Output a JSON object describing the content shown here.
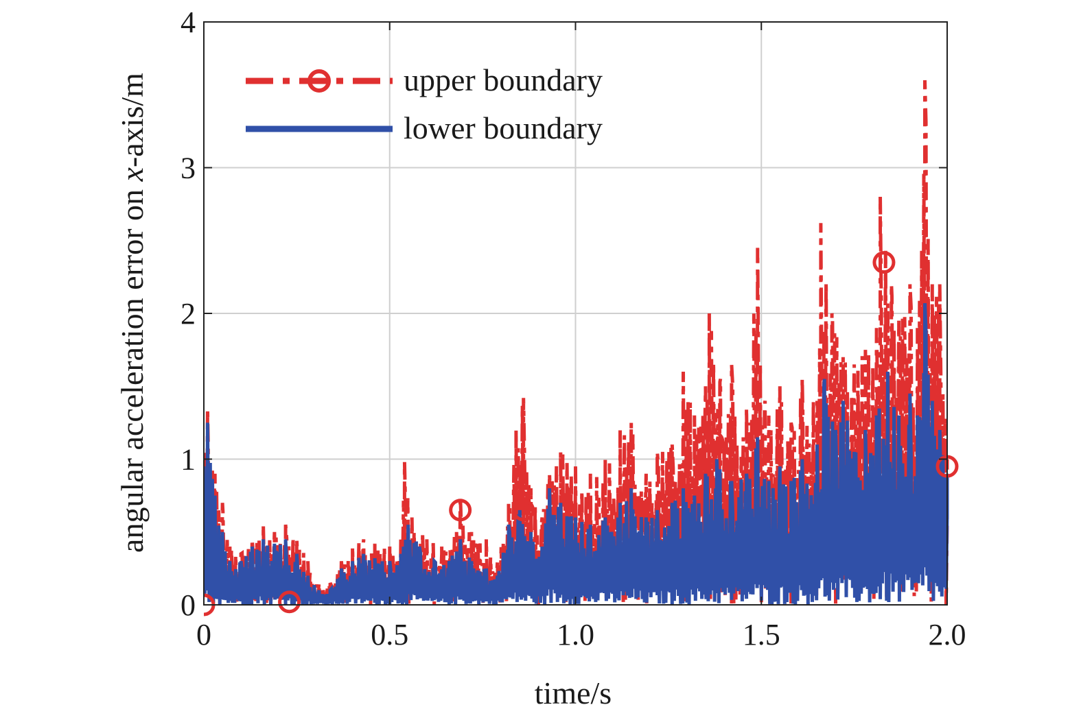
{
  "chart_data": {
    "type": "line",
    "xlabel": "time/s",
    "ylabel_parts": [
      "angular acceleration error on ",
      "x",
      "-axis/m"
    ],
    "xlim": [
      0,
      2.0
    ],
    "ylim": [
      0,
      4
    ],
    "x_ticks": [
      0,
      0.5,
      1.0,
      1.5,
      2.0
    ],
    "x_tick_labels": [
      "0",
      "0.5",
      "1.0",
      "1.5",
      "2.0"
    ],
    "y_ticks": [
      0,
      1,
      2,
      3,
      4
    ],
    "y_tick_labels": [
      "0",
      "1",
      "2",
      "3",
      "4"
    ],
    "grid": true,
    "legend_position": "top-left",
    "series": [
      {
        "name": "upper boundary",
        "color": "#e03030",
        "line_style": "dash-dot",
        "marker": "circle",
        "markers_at": [
          0,
          0.23,
          0.69,
          0.86,
          1.37,
          1.83,
          2.0
        ],
        "envelope": [
          [
            0,
            1.05
          ],
          [
            0.01,
            1.35
          ],
          [
            0.03,
            0.9
          ],
          [
            0.05,
            0.7
          ],
          [
            0.07,
            0.4
          ],
          [
            0.1,
            0.35
          ],
          [
            0.13,
            0.45
          ],
          [
            0.16,
            0.55
          ],
          [
            0.19,
            0.5
          ],
          [
            0.22,
            0.55
          ],
          [
            0.25,
            0.45
          ],
          [
            0.28,
            0.3
          ],
          [
            0.31,
            0.15
          ],
          [
            0.34,
            0.15
          ],
          [
            0.37,
            0.3
          ],
          [
            0.4,
            0.4
          ],
          [
            0.43,
            0.45
          ],
          [
            0.46,
            0.42
          ],
          [
            0.5,
            0.4
          ],
          [
            0.53,
            0.45
          ],
          [
            0.54,
            0.98
          ],
          [
            0.56,
            0.6
          ],
          [
            0.6,
            0.45
          ],
          [
            0.64,
            0.4
          ],
          [
            0.68,
            0.5
          ],
          [
            0.69,
            0.75
          ],
          [
            0.72,
            0.5
          ],
          [
            0.76,
            0.45
          ],
          [
            0.79,
            0.3
          ],
          [
            0.82,
            0.7
          ],
          [
            0.84,
            1.2
          ],
          [
            0.86,
            1.42
          ],
          [
            0.88,
            0.8
          ],
          [
            0.91,
            0.6
          ],
          [
            0.93,
            0.9
          ],
          [
            0.96,
            1.05
          ],
          [
            1.0,
            0.95
          ],
          [
            1.04,
            0.9
          ],
          [
            1.08,
            1.0
          ],
          [
            1.12,
            1.2
          ],
          [
            1.15,
            1.25
          ],
          [
            1.19,
            0.9
          ],
          [
            1.22,
            1.05
          ],
          [
            1.26,
            1.1
          ],
          [
            1.29,
            1.6
          ],
          [
            1.32,
            1.3
          ],
          [
            1.35,
            1.5
          ],
          [
            1.36,
            2.0
          ],
          [
            1.39,
            1.55
          ],
          [
            1.42,
            1.65
          ],
          [
            1.46,
            1.35
          ],
          [
            1.49,
            2.45
          ],
          [
            1.51,
            1.4
          ],
          [
            1.55,
            1.5
          ],
          [
            1.58,
            1.25
          ],
          [
            1.61,
            1.55
          ],
          [
            1.65,
            1.4
          ],
          [
            1.66,
            2.62
          ],
          [
            1.69,
            2.0
          ],
          [
            1.72,
            1.7
          ],
          [
            1.75,
            1.65
          ],
          [
            1.78,
            1.75
          ],
          [
            1.81,
            1.9
          ],
          [
            1.82,
            2.8
          ],
          [
            1.85,
            2.2
          ],
          [
            1.87,
            1.95
          ],
          [
            1.9,
            2.2
          ],
          [
            1.92,
            1.9
          ],
          [
            1.94,
            3.6
          ],
          [
            1.96,
            2.2
          ],
          [
            1.98,
            2.2
          ],
          [
            2.0,
            1.0
          ]
        ]
      },
      {
        "name": "lower boundary",
        "color": "#3050a8",
        "line_style": "solid",
        "envelope": [
          [
            0,
            0.95
          ],
          [
            0.01,
            1.25
          ],
          [
            0.03,
            0.75
          ],
          [
            0.05,
            0.5
          ],
          [
            0.07,
            0.3
          ],
          [
            0.1,
            0.3
          ],
          [
            0.13,
            0.4
          ],
          [
            0.16,
            0.45
          ],
          [
            0.19,
            0.42
          ],
          [
            0.22,
            0.45
          ],
          [
            0.25,
            0.35
          ],
          [
            0.28,
            0.2
          ],
          [
            0.31,
            0.1
          ],
          [
            0.34,
            0.1
          ],
          [
            0.37,
            0.25
          ],
          [
            0.4,
            0.3
          ],
          [
            0.43,
            0.35
          ],
          [
            0.46,
            0.32
          ],
          [
            0.5,
            0.3
          ],
          [
            0.53,
            0.35
          ],
          [
            0.55,
            0.55
          ],
          [
            0.58,
            0.4
          ],
          [
            0.62,
            0.3
          ],
          [
            0.66,
            0.3
          ],
          [
            0.69,
            0.45
          ],
          [
            0.72,
            0.3
          ],
          [
            0.76,
            0.25
          ],
          [
            0.79,
            0.2
          ],
          [
            0.82,
            0.55
          ],
          [
            0.85,
            0.65
          ],
          [
            0.88,
            0.5
          ],
          [
            0.91,
            0.4
          ],
          [
            0.93,
            0.8
          ],
          [
            0.96,
            0.7
          ],
          [
            1.0,
            0.6
          ],
          [
            1.04,
            0.55
          ],
          [
            1.08,
            0.6
          ],
          [
            1.12,
            0.7
          ],
          [
            1.15,
            0.8
          ],
          [
            1.19,
            0.6
          ],
          [
            1.22,
            0.65
          ],
          [
            1.26,
            0.7
          ],
          [
            1.29,
            0.8
          ],
          [
            1.32,
            0.75
          ],
          [
            1.35,
            0.9
          ],
          [
            1.38,
            1.0
          ],
          [
            1.42,
            0.85
          ],
          [
            1.46,
            0.9
          ],
          [
            1.49,
            1.15
          ],
          [
            1.52,
            0.85
          ],
          [
            1.55,
            0.95
          ],
          [
            1.58,
            0.85
          ],
          [
            1.61,
            1.0
          ],
          [
            1.65,
            1.1
          ],
          [
            1.67,
            1.55
          ],
          [
            1.7,
            1.2
          ],
          [
            1.72,
            1.4
          ],
          [
            1.75,
            1.05
          ],
          [
            1.78,
            1.2
          ],
          [
            1.81,
            1.3
          ],
          [
            1.84,
            1.6
          ],
          [
            1.87,
            1.3
          ],
          [
            1.9,
            1.45
          ],
          [
            1.92,
            1.3
          ],
          [
            1.94,
            2.07
          ],
          [
            1.96,
            1.4
          ],
          [
            1.98,
            1.2
          ],
          [
            2.0,
            0.9
          ]
        ]
      }
    ]
  }
}
